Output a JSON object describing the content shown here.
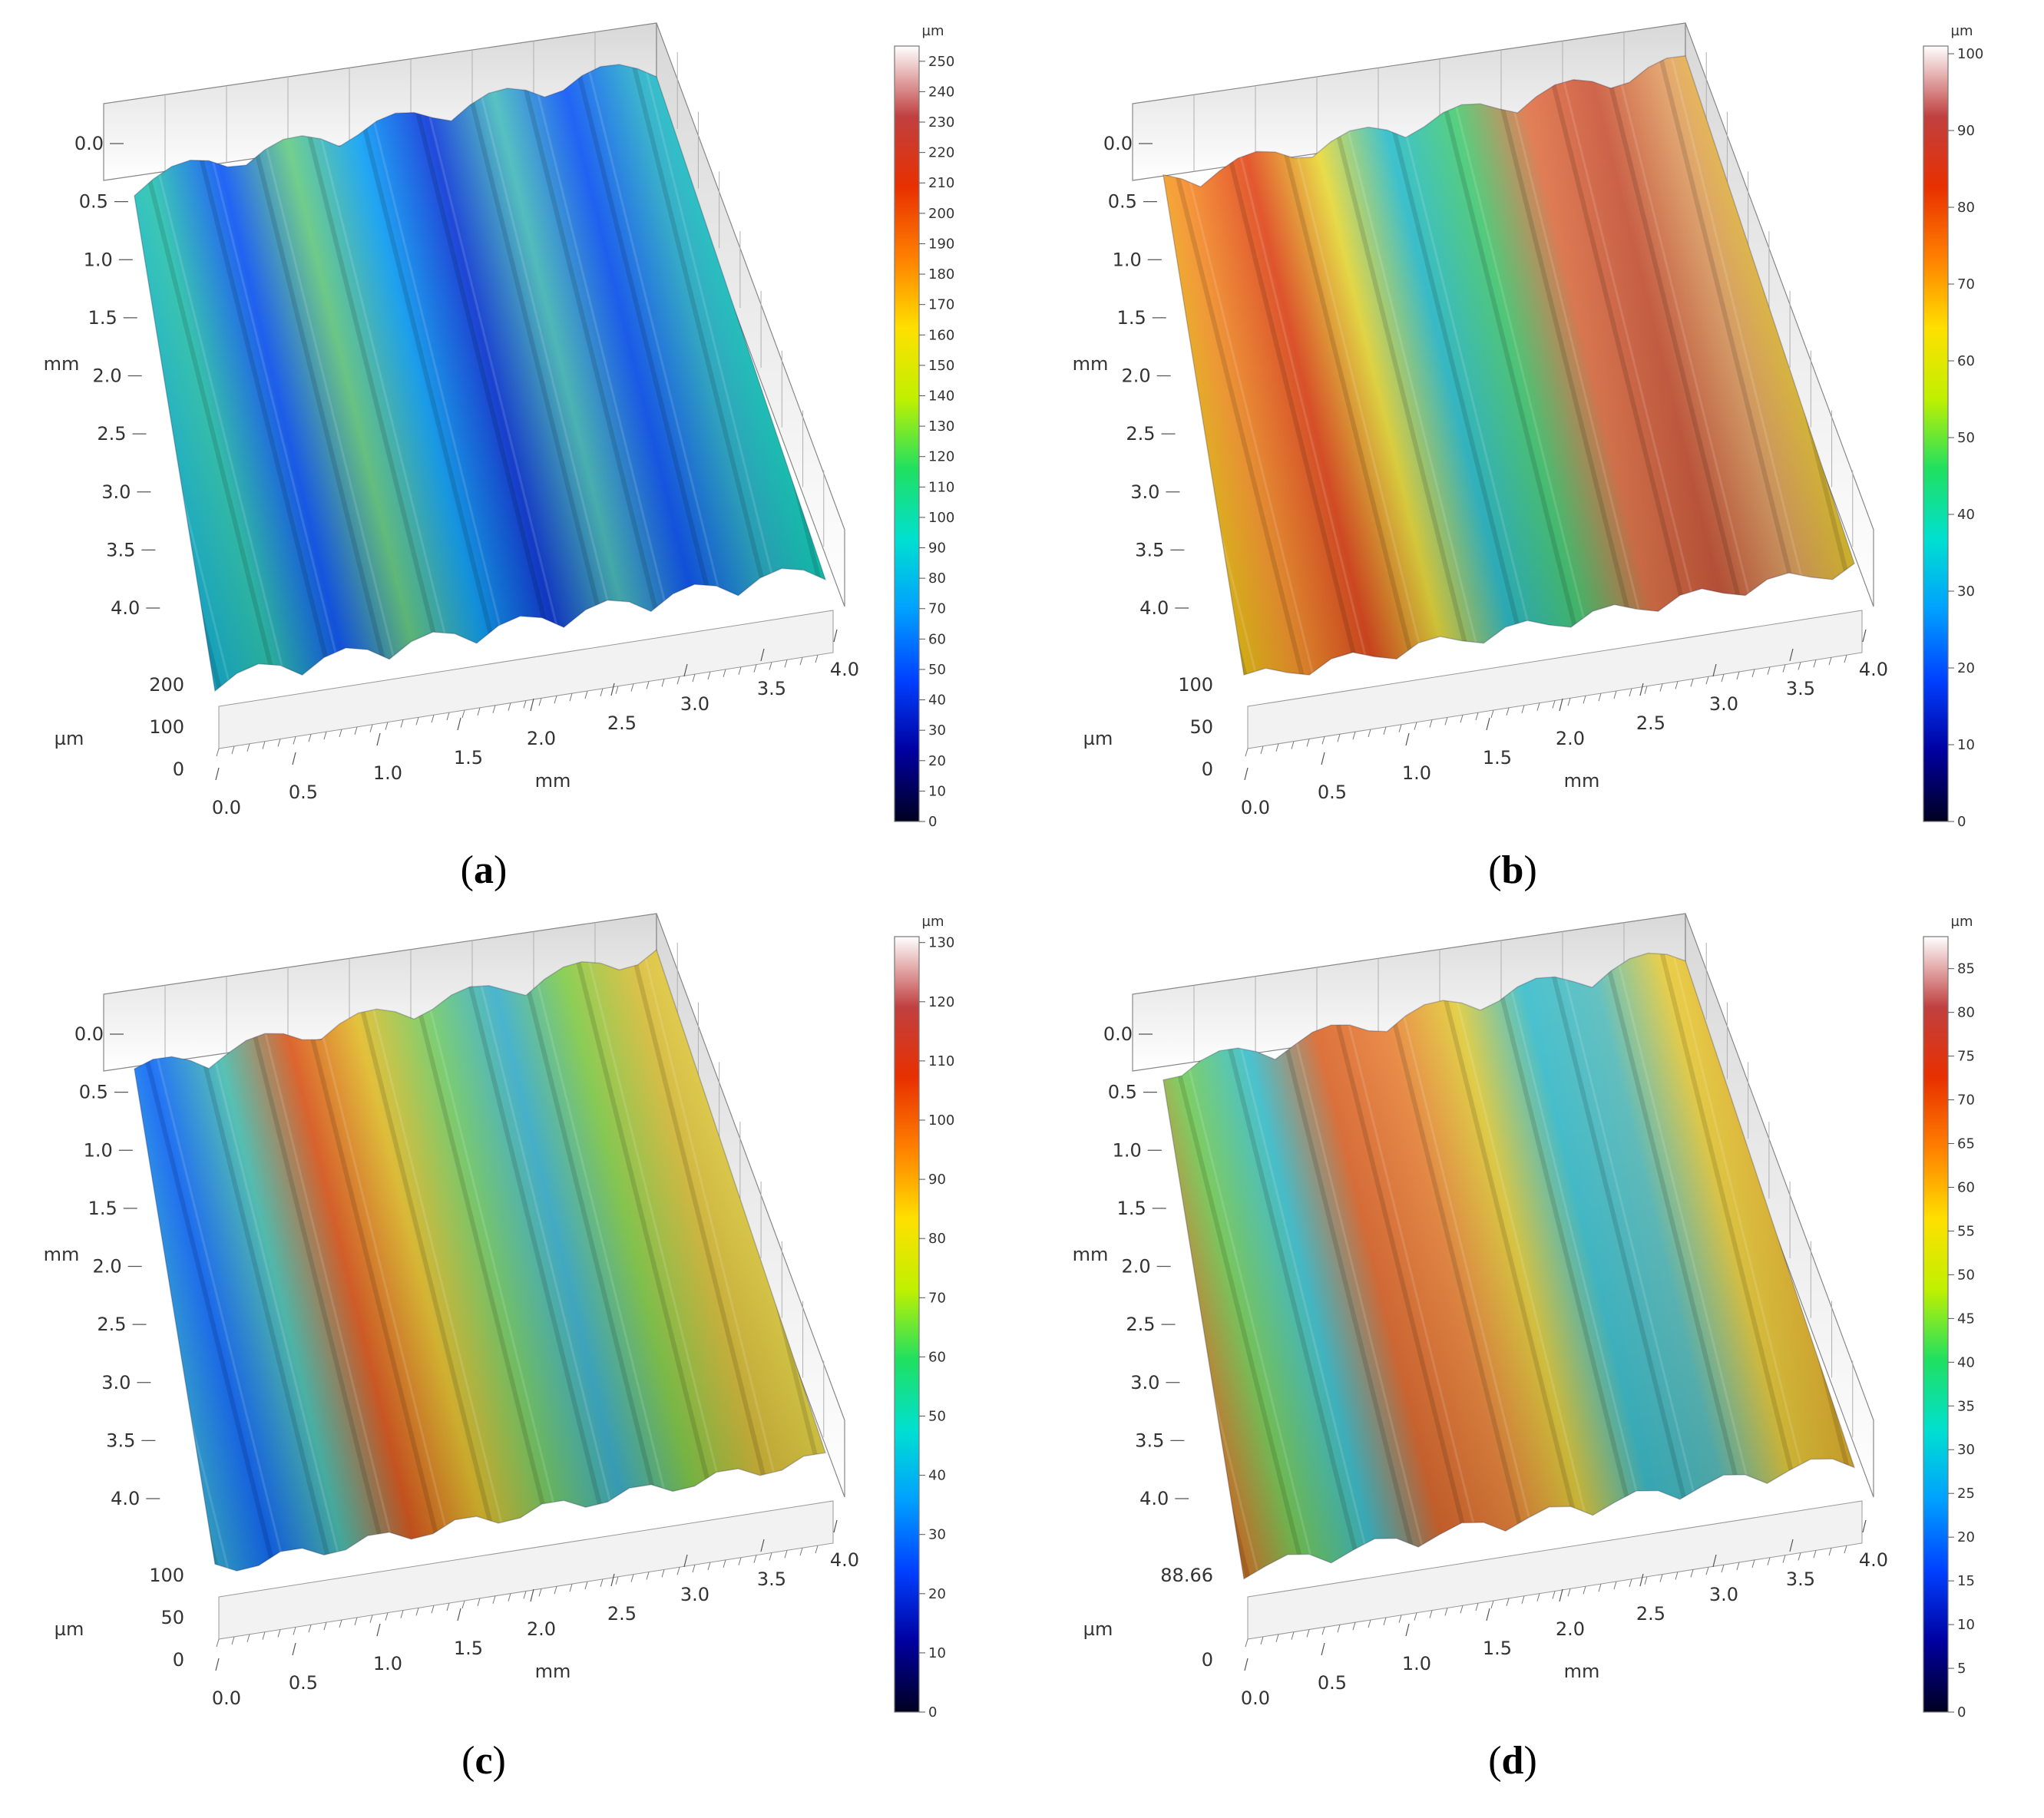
{
  "panels": [
    {
      "caption": "a",
      "y_ticks": [
        "0.0",
        "0.5",
        "1.0",
        "1.5",
        "2.0",
        "2.5",
        "3.0",
        "3.5",
        "4.0"
      ],
      "x_ticks": [
        "0.0",
        "0.5",
        "1.0",
        "1.5",
        "2.0",
        "2.5",
        "3.0",
        "3.5",
        "4.0"
      ],
      "z_ticks": [
        "200",
        "100",
        "0"
      ],
      "y_unit": "mm",
      "x_unit": "mm",
      "z_unit": "µm",
      "colorbar_unit": "µm",
      "colorbar_ticks": [
        "250",
        "240",
        "230",
        "220",
        "210",
        "200",
        "190",
        "180",
        "170",
        "160",
        "150",
        "140",
        "130",
        "120",
        "110",
        "100",
        "90",
        "80",
        "70",
        "60",
        "50",
        "40",
        "30",
        "20",
        "10",
        "0"
      ],
      "colorbar_max": 255,
      "palette": "blue"
    },
    {
      "caption": "b",
      "y_ticks": [
        "0.0",
        "0.5",
        "1.0",
        "1.5",
        "2.0",
        "2.5",
        "3.0",
        "3.5",
        "4.0"
      ],
      "x_ticks": [
        "0.0",
        "0.5",
        "1.0",
        "1.5",
        "2.0",
        "2.5",
        "3.0",
        "3.5",
        "4.0"
      ],
      "z_ticks": [
        "100",
        "50",
        "0"
      ],
      "y_unit": "mm",
      "x_unit": "mm",
      "z_unit": "µm",
      "colorbar_unit": "µm",
      "colorbar_ticks": [
        "100",
        "90",
        "80",
        "70",
        "60",
        "50",
        "40",
        "30",
        "20",
        "10",
        "0"
      ],
      "colorbar_max": 101,
      "palette": "hot"
    },
    {
      "caption": "c",
      "y_ticks": [
        "0.0",
        "0.5",
        "1.0",
        "1.5",
        "2.0",
        "2.5",
        "3.0",
        "3.5",
        "4.0"
      ],
      "x_ticks": [
        "0.0",
        "0.5",
        "1.0",
        "1.5",
        "2.0",
        "2.5",
        "3.0",
        "3.5",
        "4.0"
      ],
      "z_ticks": [
        "100",
        "50",
        "0"
      ],
      "y_unit": "mm",
      "x_unit": "mm",
      "z_unit": "µm",
      "colorbar_unit": "µm",
      "colorbar_ticks": [
        "130",
        "120",
        "110",
        "100",
        "90",
        "80",
        "70",
        "60",
        "50",
        "40",
        "30",
        "20",
        "10",
        "0"
      ],
      "colorbar_max": 131,
      "palette": "mixed"
    },
    {
      "caption": "d",
      "y_ticks": [
        "0.0",
        "0.5",
        "1.0",
        "1.5",
        "2.0",
        "2.5",
        "3.0",
        "3.5",
        "4.0"
      ],
      "x_ticks": [
        "0.0",
        "0.5",
        "1.0",
        "1.5",
        "2.0",
        "2.5",
        "3.0",
        "3.5",
        "4.0"
      ],
      "z_ticks": [
        "88.66",
        "0"
      ],
      "y_unit": "mm",
      "x_unit": "mm",
      "z_unit": "µm",
      "colorbar_unit": "µm",
      "colorbar_ticks": [
        "85",
        "80",
        "75",
        "70",
        "65",
        "60",
        "55",
        "50",
        "45",
        "40",
        "35",
        "30",
        "25",
        "20",
        "15",
        "10",
        "5",
        "0"
      ],
      "colorbar_max": 88.66,
      "palette": "warm"
    }
  ],
  "colormap": [
    "#000020",
    "#0000a0",
    "#0040ff",
    "#00a0ff",
    "#00e0d0",
    "#20e060",
    "#c0f000",
    "#ffe000",
    "#ff8000",
    "#e83000",
    "#c04040",
    "#ffffff"
  ]
}
